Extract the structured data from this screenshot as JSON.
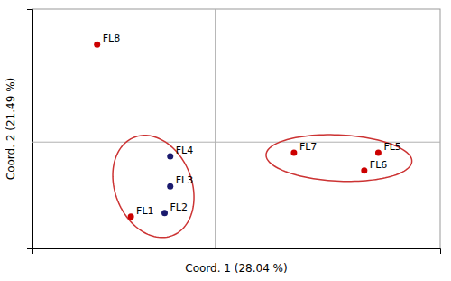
{
  "chart_data": {
    "type": "scatter",
    "labels": [
      "FL1",
      "FL2",
      "FL3",
      "FL4",
      "FL5",
      "FL6",
      "FL7",
      "FL8"
    ],
    "x": [
      -0.3,
      -0.18,
      -0.16,
      -0.16,
      0.58,
      0.53,
      0.28,
      -0.42
    ],
    "values": [
      -0.42,
      -0.4,
      -0.25,
      -0.08,
      -0.06,
      -0.16,
      -0.06,
      0.55
    ],
    "colors": [
      "#cc0000",
      "#1a1a6e",
      "#1a1a6e",
      "#1a1a6e",
      "#cc0000",
      "#cc0000",
      "#cc0000",
      "#cc0000"
    ],
    "ellipses": [
      {
        "center_x": -0.22,
        "center_y": -0.25,
        "width": 0.28,
        "height": 0.58,
        "angle": 8,
        "color": "#cc3333"
      },
      {
        "center_x": 0.44,
        "center_y": -0.09,
        "width": 0.52,
        "height": 0.26,
        "angle": -5,
        "color": "#cc3333"
      }
    ],
    "hline_y": 0.0,
    "vline_x": 0.0,
    "xlabel": "Coord. 1 (28.04 %)",
    "ylabel": "Coord. 2 (21.49 %)",
    "xlim": [
      -0.65,
      0.8
    ],
    "ylim": [
      -0.6,
      0.75
    ],
    "tick_labels": false,
    "grid": false
  }
}
